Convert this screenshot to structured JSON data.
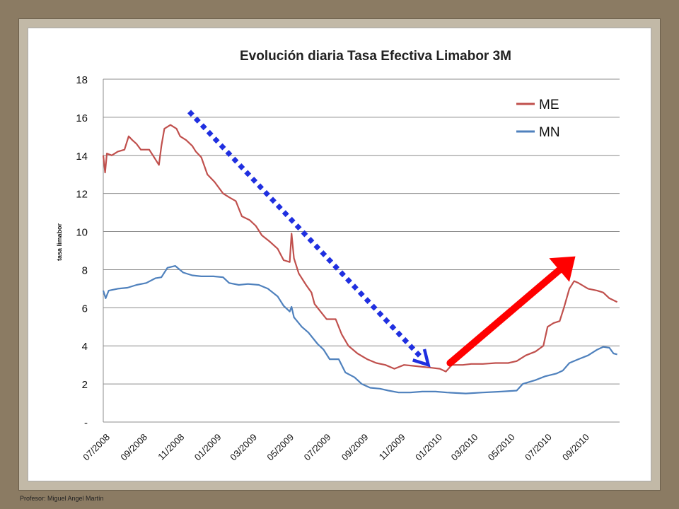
{
  "footer": {
    "text": "Profesor: Miguel Angel Martín"
  },
  "colors": {
    "me": "#c0504d",
    "mn": "#4f81bd",
    "down_arrow": "#1f2fe0",
    "up_arrow": "#ff0000",
    "grid": "#8c8c8c"
  },
  "chart_data": {
    "type": "line",
    "title": "Evolución diaria Tasa Efectiva Limabor  3M",
    "xlabel": "",
    "ylabel": "tasa limabor",
    "ylim": [
      0,
      18
    ],
    "yticks": [
      {
        "value": 0,
        "label": "-"
      },
      {
        "value": 2,
        "label": "2"
      },
      {
        "value": 4,
        "label": "4"
      },
      {
        "value": 6,
        "label": "6"
      },
      {
        "value": 8,
        "label": "8"
      },
      {
        "value": 10,
        "label": "10"
      },
      {
        "value": 12,
        "label": "12"
      },
      {
        "value": 14,
        "label": "14"
      },
      {
        "value": 16,
        "label": "16"
      },
      {
        "value": 18,
        "label": "18"
      }
    ],
    "xrange": [
      "2008-07",
      "2010-11"
    ],
    "xticks": [
      "07/2008",
      "09/2008",
      "11/2008",
      "01/2009",
      "03/2009",
      "05/2009",
      "07/2009",
      "09/2009",
      "11/2009",
      "01/2010",
      "03/2010",
      "05/2010",
      "07/2010",
      "09/2010"
    ],
    "grid": true,
    "legend_position": "top-right",
    "series": [
      {
        "name": "ME",
        "points": [
          [
            "2008-07-01",
            14.0
          ],
          [
            "2008-07-04",
            13.1
          ],
          [
            "2008-07-07",
            14.1
          ],
          [
            "2008-07-15",
            14.0
          ],
          [
            "2008-07-25",
            14.2
          ],
          [
            "2008-08-05",
            14.3
          ],
          [
            "2008-08-12",
            15.0
          ],
          [
            "2008-08-18",
            14.8
          ],
          [
            "2008-08-25",
            14.6
          ],
          [
            "2008-09-01",
            14.3
          ],
          [
            "2008-09-15",
            14.3
          ],
          [
            "2008-09-25",
            13.8
          ],
          [
            "2008-10-01",
            13.5
          ],
          [
            "2008-10-05",
            14.5
          ],
          [
            "2008-10-10",
            15.4
          ],
          [
            "2008-10-20",
            15.6
          ],
          [
            "2008-10-30",
            15.4
          ],
          [
            "2008-11-05",
            15.0
          ],
          [
            "2008-11-15",
            14.8
          ],
          [
            "2008-11-25",
            14.5
          ],
          [
            "2008-12-01",
            14.2
          ],
          [
            "2008-12-10",
            13.9
          ],
          [
            "2008-12-20",
            13.0
          ],
          [
            "2009-01-01",
            12.6
          ],
          [
            "2009-01-15",
            12.0
          ],
          [
            "2009-01-25",
            11.8
          ],
          [
            "2009-02-05",
            11.6
          ],
          [
            "2009-02-15",
            10.8
          ],
          [
            "2009-02-28",
            10.6
          ],
          [
            "2009-03-10",
            10.3
          ],
          [
            "2009-03-20",
            9.8
          ],
          [
            "2009-04-01",
            9.5
          ],
          [
            "2009-04-15",
            9.1
          ],
          [
            "2009-04-25",
            8.5
          ],
          [
            "2009-05-05",
            8.4
          ],
          [
            "2009-05-08",
            9.9
          ],
          [
            "2009-05-12",
            8.6
          ],
          [
            "2009-05-20",
            7.8
          ],
          [
            "2009-06-01",
            7.2
          ],
          [
            "2009-06-10",
            6.8
          ],
          [
            "2009-06-15",
            6.2
          ],
          [
            "2009-06-25",
            5.8
          ],
          [
            "2009-07-05",
            5.4
          ],
          [
            "2009-07-20",
            5.4
          ],
          [
            "2009-07-30",
            4.6
          ],
          [
            "2009-08-10",
            4.0
          ],
          [
            "2009-08-25",
            3.6
          ],
          [
            "2009-09-10",
            3.3
          ],
          [
            "2009-09-25",
            3.1
          ],
          [
            "2009-10-10",
            3.0
          ],
          [
            "2009-10-25",
            2.8
          ],
          [
            "2009-11-10",
            3.0
          ],
          [
            "2009-11-25",
            2.95
          ],
          [
            "2009-12-10",
            2.9
          ],
          [
            "2009-12-25",
            2.85
          ],
          [
            "2010-01-08",
            2.8
          ],
          [
            "2010-01-18",
            2.65
          ],
          [
            "2010-01-28",
            3.0
          ],
          [
            "2010-02-15",
            3.0
          ],
          [
            "2010-03-01",
            3.05
          ],
          [
            "2010-03-20",
            3.05
          ],
          [
            "2010-04-10",
            3.1
          ],
          [
            "2010-05-01",
            3.1
          ],
          [
            "2010-05-15",
            3.2
          ],
          [
            "2010-05-30",
            3.5
          ],
          [
            "2010-06-15",
            3.7
          ],
          [
            "2010-06-28",
            4.0
          ],
          [
            "2010-07-05",
            5.0
          ],
          [
            "2010-07-15",
            5.2
          ],
          [
            "2010-07-25",
            5.3
          ],
          [
            "2010-08-01",
            6.0
          ],
          [
            "2010-08-10",
            7.0
          ],
          [
            "2010-08-18",
            7.4
          ],
          [
            "2010-08-25",
            7.3
          ],
          [
            "2010-09-10",
            7.0
          ],
          [
            "2010-09-25",
            6.9
          ],
          [
            "2010-10-05",
            6.8
          ],
          [
            "2010-10-15",
            6.5
          ],
          [
            "2010-10-28",
            6.3
          ]
        ]
      },
      {
        "name": "MN",
        "points": [
          [
            "2008-07-01",
            6.9
          ],
          [
            "2008-07-05",
            6.5
          ],
          [
            "2008-07-10",
            6.9
          ],
          [
            "2008-07-25",
            7.0
          ],
          [
            "2008-08-10",
            7.05
          ],
          [
            "2008-08-25",
            7.2
          ],
          [
            "2008-09-10",
            7.3
          ],
          [
            "2008-09-25",
            7.55
          ],
          [
            "2008-10-05",
            7.6
          ],
          [
            "2008-10-15",
            8.1
          ],
          [
            "2008-10-28",
            8.2
          ],
          [
            "2008-11-10",
            7.85
          ],
          [
            "2008-11-25",
            7.7
          ],
          [
            "2008-12-10",
            7.65
          ],
          [
            "2008-12-30",
            7.65
          ],
          [
            "2009-01-15",
            7.6
          ],
          [
            "2009-01-25",
            7.3
          ],
          [
            "2009-02-10",
            7.2
          ],
          [
            "2009-02-25",
            7.25
          ],
          [
            "2009-03-15",
            7.2
          ],
          [
            "2009-03-30",
            7.0
          ],
          [
            "2009-04-15",
            6.6
          ],
          [
            "2009-04-25",
            6.1
          ],
          [
            "2009-05-05",
            5.8
          ],
          [
            "2009-05-08",
            6.05
          ],
          [
            "2009-05-12",
            5.5
          ],
          [
            "2009-05-25",
            5.0
          ],
          [
            "2009-06-05",
            4.7
          ],
          [
            "2009-06-20",
            4.1
          ],
          [
            "2009-06-30",
            3.8
          ],
          [
            "2009-07-10",
            3.3
          ],
          [
            "2009-07-25",
            3.3
          ],
          [
            "2009-08-05",
            2.6
          ],
          [
            "2009-08-20",
            2.35
          ],
          [
            "2009-09-01",
            2.0
          ],
          [
            "2009-09-15",
            1.8
          ],
          [
            "2009-10-01",
            1.75
          ],
          [
            "2009-10-15",
            1.65
          ],
          [
            "2009-11-01",
            1.55
          ],
          [
            "2009-11-20",
            1.55
          ],
          [
            "2009-12-10",
            1.6
          ],
          [
            "2010-01-01",
            1.6
          ],
          [
            "2010-01-20",
            1.55
          ],
          [
            "2010-02-20",
            1.5
          ],
          [
            "2010-03-20",
            1.55
          ],
          [
            "2010-04-20",
            1.6
          ],
          [
            "2010-05-15",
            1.65
          ],
          [
            "2010-05-25",
            2.0
          ],
          [
            "2010-06-15",
            2.2
          ],
          [
            "2010-07-01",
            2.4
          ],
          [
            "2010-07-20",
            2.55
          ],
          [
            "2010-07-30",
            2.7
          ],
          [
            "2010-08-10",
            3.1
          ],
          [
            "2010-08-25",
            3.3
          ],
          [
            "2010-09-10",
            3.5
          ],
          [
            "2010-09-25",
            3.8
          ],
          [
            "2010-10-05",
            3.95
          ],
          [
            "2010-10-15",
            3.9
          ],
          [
            "2010-10-22",
            3.6
          ],
          [
            "2010-10-28",
            3.55
          ]
        ]
      }
    ],
    "annotations": [
      {
        "type": "arrow",
        "style": "dotted",
        "color": "down_arrow",
        "from": [
          "2008-11-20",
          16.3
        ],
        "to": [
          "2009-12-20",
          3.0
        ]
      },
      {
        "type": "arrow",
        "style": "solid",
        "color": "up_arrow",
        "from": [
          "2010-01-25",
          3.1
        ],
        "to": [
          "2010-08-20",
          8.7
        ]
      }
    ]
  }
}
